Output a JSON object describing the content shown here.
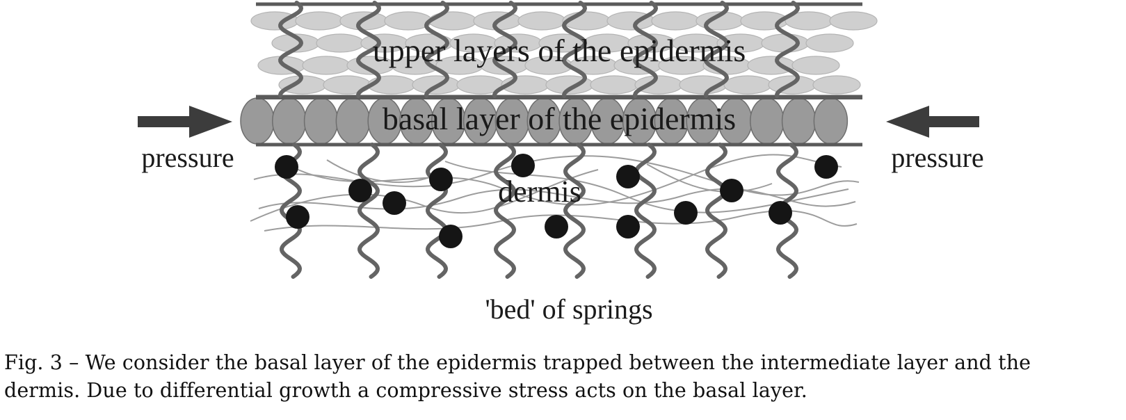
{
  "figure": {
    "labels": {
      "upper_layers": "upper layers of the epidermis",
      "basal_layer": "basal layer of the epidermis",
      "dermis": "dermis",
      "pressure_left": "pressure",
      "pressure_right": "pressure",
      "springs": "'bed' of springs"
    },
    "colors": {
      "line": "#5a5a5a",
      "upper_cell": "#cfcfcf",
      "basal_cell": "#9a9a9a",
      "spring": "#646464",
      "fiber": "#9c9c9c",
      "dot": "#151515",
      "arrow": "#3c3c3c"
    }
  },
  "caption": {
    "text": "Fig. 3 – We consider the basal layer of the epidermis trapped between the intermediate layer and the\ndermis. Due to differential growth a compressive stress acts on the basal layer."
  }
}
